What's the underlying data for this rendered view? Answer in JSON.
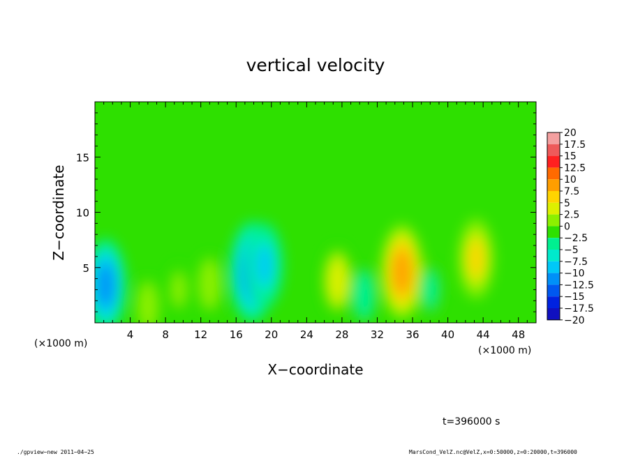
{
  "chart_data": {
    "type": "heatmap",
    "title": "vertical velocity",
    "xlabel": "X−coordinate",
    "ylabel": "Z−coordinate",
    "x_unit_left": "(×1000 m)",
    "x_unit_right": "(×1000 m)",
    "xlim": [
      0,
      50
    ],
    "ylim": [
      0,
      20
    ],
    "x_ticks": [
      4,
      8,
      12,
      16,
      20,
      24,
      28,
      32,
      36,
      40,
      44,
      48
    ],
    "y_ticks": [
      5,
      10,
      15
    ],
    "x_tick_labels": [
      "4",
      "8",
      "12",
      "16",
      "20",
      "24",
      "28",
      "32",
      "36",
      "40",
      "44",
      "48"
    ],
    "y_tick_labels": [
      "5",
      "10",
      "15"
    ],
    "colorbar": {
      "levels": [
        20,
        17.5,
        15,
        12.5,
        10,
        7.5,
        5,
        2.5,
        0,
        -2.5,
        -5,
        -7.5,
        -10,
        -12.5,
        -15,
        -17.5,
        -20
      ],
      "labels": [
        "20",
        "17.5",
        "15",
        "12.5",
        "10",
        "7.5",
        "5",
        "2.5",
        "0",
        "−2.5",
        "−5",
        "−7.5",
        "−10",
        "−12.5",
        "−15",
        "−17.5",
        "−20"
      ],
      "colors": [
        "#f4a0a0",
        "#ee5a5a",
        "#ff2020",
        "#ff6a00",
        "#ff9e00",
        "#ffd400",
        "#ddf000",
        "#8cf000",
        "#2ee000",
        "#00f090",
        "#00eacc",
        "#00c8f8",
        "#0090f8",
        "#0058f0",
        "#0022e0",
        "#1010c0",
        "#6010b0"
      ]
    },
    "features": [
      {
        "x": 1.2,
        "z": 3.4,
        "value": -9.5
      },
      {
        "x": 6.0,
        "z": 1.5,
        "value": 3.0
      },
      {
        "x": 9.5,
        "z": 3.0,
        "value": 2.0
      },
      {
        "x": 13.0,
        "z": 3.5,
        "value": 3.5
      },
      {
        "x": 17.8,
        "z": 4.6,
        "value": -11.0
      },
      {
        "x": 19.2,
        "z": 5.2,
        "value": -8.0
      },
      {
        "x": 27.5,
        "z": 3.8,
        "value": 5.5
      },
      {
        "x": 30.5,
        "z": 2.5,
        "value": -3.0
      },
      {
        "x": 34.8,
        "z": 4.6,
        "value": 10.0
      },
      {
        "x": 38.0,
        "z": 3.0,
        "value": -2.5
      },
      {
        "x": 43.2,
        "z": 5.8,
        "value": 7.0
      }
    ]
  },
  "footer": {
    "time_label": "t=396000 s",
    "left_note": "./gpview−new  2011−04−25",
    "right_note": "MarsCond_VelZ.nc@VelZ,x=0:50000,z=0:20000,t=396000"
  }
}
